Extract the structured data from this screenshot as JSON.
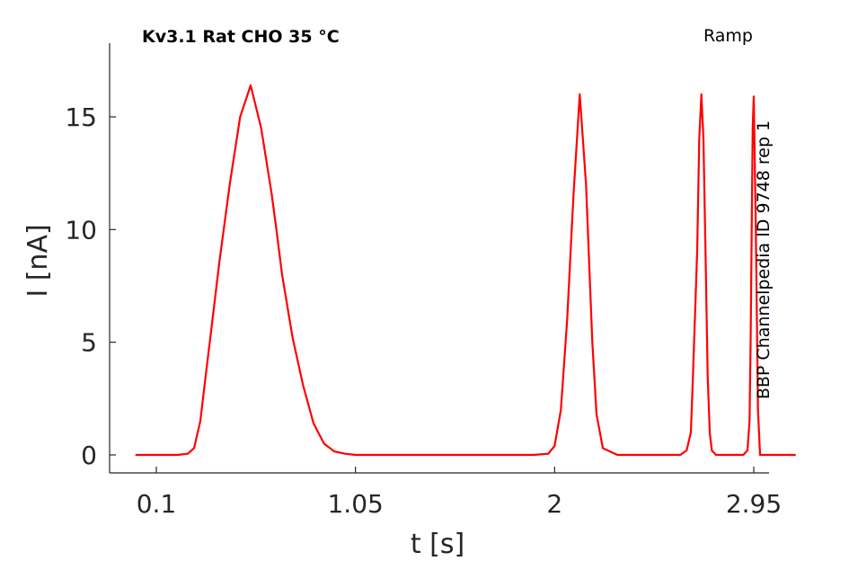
{
  "chart_data": {
    "type": "line",
    "title": "Kv3.1  Rat  CHO  35 °C",
    "protocol_label": "Ramp",
    "side_label": "BBP Channelpedia ID 9748 rep 1",
    "xlabel": "t [s]",
    "ylabel": "I [nA]",
    "xlim": [
      -0.6,
      3.0
    ],
    "ylim": [
      -0.8,
      18.5
    ],
    "x_ticks": [
      0.1,
      1.05,
      2,
      2.95
    ],
    "x_tick_labels": [
      "0.1",
      "1.05",
      "2",
      "2.95"
    ],
    "y_ticks": [
      0,
      5,
      10,
      15
    ],
    "y_tick_labels": [
      "0",
      "5",
      "10",
      "15"
    ],
    "grid": false,
    "line_color": "#ff0000",
    "axis_color": "#262626",
    "series": [
      {
        "x": [
          0.0,
          0.2,
          0.25,
          0.28,
          0.31,
          0.33,
          0.36,
          0.4,
          0.45,
          0.5,
          0.55,
          0.6,
          0.65,
          0.67,
          0.7,
          0.75,
          0.8,
          0.85,
          0.9,
          0.95,
          1.0,
          1.05,
          1.1,
          1.14,
          1.2,
          1.5,
          1.9,
          1.97,
          2.0,
          2.03,
          2.06,
          2.09,
          2.12,
          2.15,
          2.18,
          2.2,
          2.23,
          2.3,
          2.6,
          2.63,
          2.65,
          2.66,
          2.68,
          2.69,
          2.7,
          2.71,
          2.72,
          2.73,
          2.74,
          2.75,
          2.77,
          2.9,
          2.92,
          2.93,
          2.935,
          2.94,
          2.945,
          2.95,
          2.96,
          2.97,
          2.98,
          3.0,
          3.15
        ],
        "y": [
          0.0,
          0.0,
          0.05,
          0.3,
          1.5,
          3.1,
          5.4,
          8.5,
          12.0,
          15.0,
          16.4,
          14.5,
          11.6,
          10.2,
          8.0,
          5.2,
          3.1,
          1.4,
          0.5,
          0.15,
          0.05,
          0.0,
          0.0,
          0.0,
          0.0,
          0.0,
          0.0,
          0.05,
          0.4,
          2.0,
          6.0,
          11.5,
          16.0,
          12.0,
          5.0,
          1.8,
          0.3,
          0.0,
          0.0,
          0.2,
          1.0,
          3.5,
          9.0,
          14.0,
          16.0,
          14.0,
          9.0,
          3.5,
          1.0,
          0.2,
          0.0,
          0.0,
          0.2,
          1.5,
          5.0,
          10.0,
          14.5,
          15.9,
          10.0,
          2.0,
          0.0,
          0.0,
          0.0
        ]
      }
    ]
  }
}
